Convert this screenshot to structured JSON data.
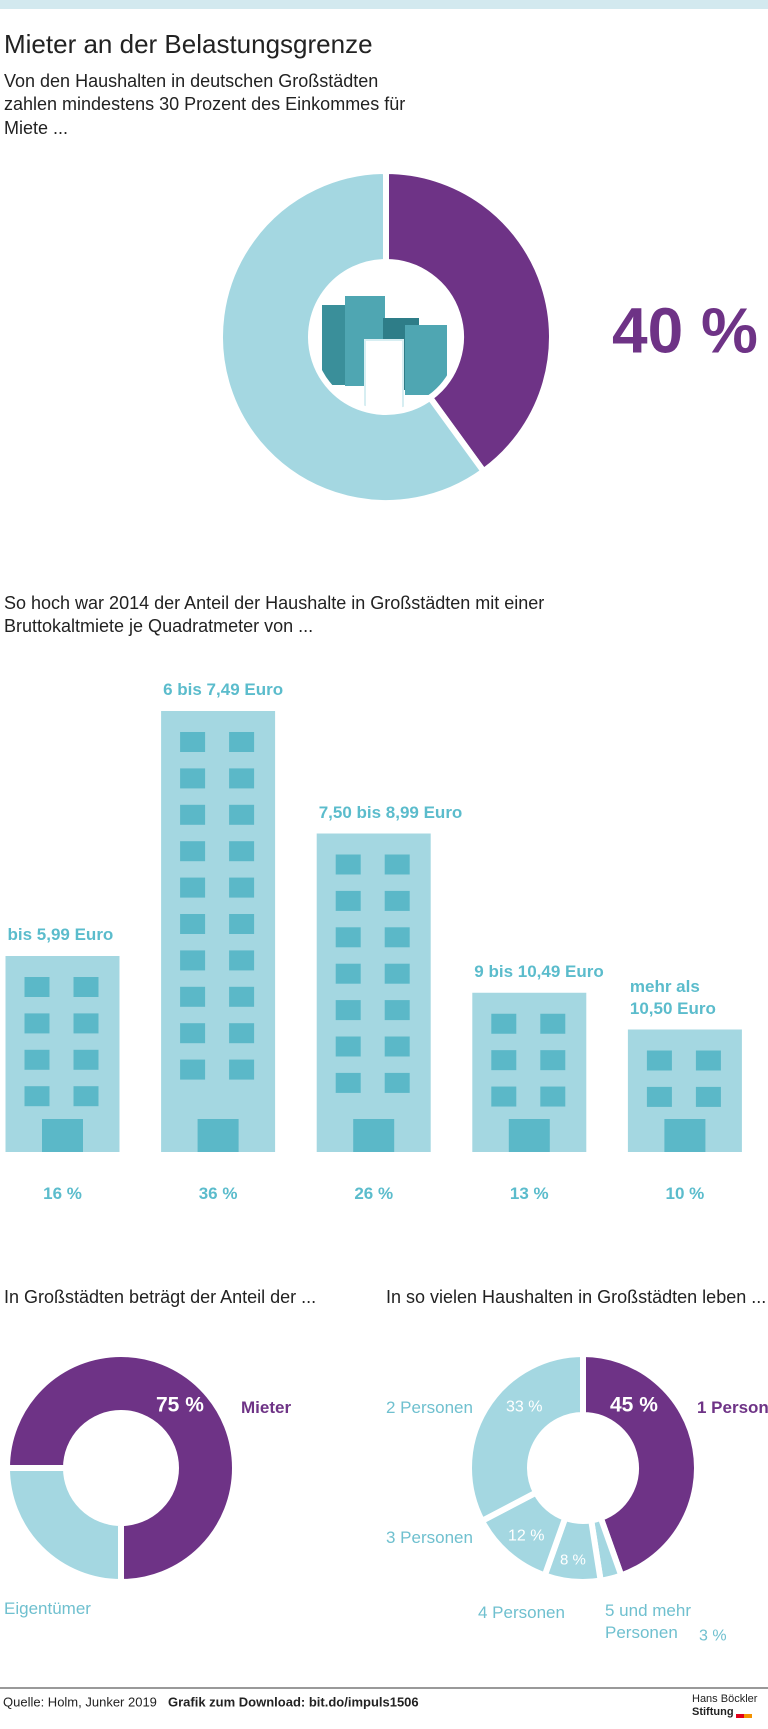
{
  "chart_data": [
    {
      "type": "donut",
      "title": "Mieter an der Belastungsgrenze",
      "subtitle": "Von den Haushalten in deutschen Großstädten zahlen mindestens 30 Prozent des Einkommes für Miete ...",
      "values": [
        40,
        60
      ],
      "value_labels": [
        "40 %",
        null
      ],
      "colors": [
        "#6e3386",
        "#a4d7e1"
      ]
    },
    {
      "type": "bar",
      "subtitle": "So hoch war 2014 der Anteil der Haushalte in Großstädten mit einer Bruttokaltmiete je Quadratmeter von ...",
      "categories": [
        "bis 5,99 Euro",
        "6 bis 7,49 Euro",
        "7,50 bis 8,99 Euro",
        "9 bis 10,49 Euro",
        "mehr als 10,50 Euro"
      ],
      "values": [
        16,
        36,
        26,
        13,
        10
      ],
      "value_labels": [
        "16 %",
        "36 %",
        "26 %",
        "13 %",
        "10 %"
      ],
      "color": "#a4d7e1"
    },
    {
      "type": "donut",
      "title": "In Großstädten beträgt der Anteil der ...",
      "categories": [
        "Mieter",
        "Eigentümer"
      ],
      "values": [
        75,
        25
      ],
      "value_labels": [
        "75 %",
        null
      ],
      "colors": [
        "#6e3386",
        "#a4d7e1"
      ]
    },
    {
      "type": "donut",
      "title": "In so vielen Haushalten in Großstädten leben ...",
      "categories": [
        "1 Person",
        "2 Personen",
        "3 Personen",
        "4 Personen",
        "5 und mehr Personen"
      ],
      "values": [
        45,
        33,
        12,
        8,
        3
      ],
      "value_labels": [
        "45 %",
        "33 %",
        "12 %",
        "8 %",
        "3 %"
      ],
      "colors": [
        "#6e3386",
        "#a4d7e1",
        "#a4d7e1",
        "#a4d7e1",
        "#a4d7e1"
      ]
    }
  ],
  "footer": {
    "source": "Quelle: Holm, Junker 2019",
    "download": "Grafik zum Download: bit.do/impuls1506",
    "logo_lines": [
      "Hans Böckler",
      "Stiftung"
    ]
  }
}
